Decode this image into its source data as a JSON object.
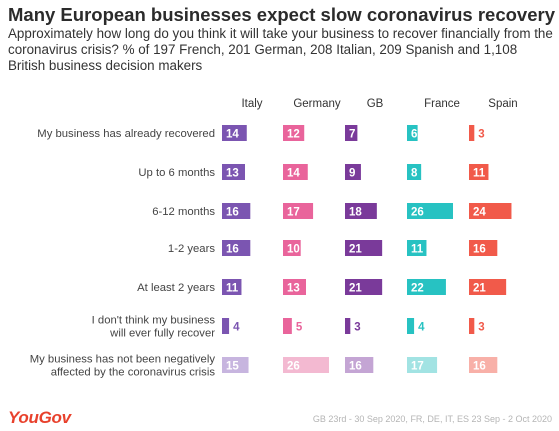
{
  "header": {
    "title": "Many European businesses expect slow coronavirus recovery",
    "subtitle": "Approximately how long do you think it will take your business to recover financially from the coronavirus crisis? % of 197 French, 201 German, 208 Italian, 209 Spanish and 1,108 British business decision makers"
  },
  "footer": {
    "logo": "YouGov",
    "note": "GB 23rd - 30 Sep 2020, FR, DE, IT, ES 23 Sep - 2 Oct 2020"
  },
  "chart_data": {
    "type": "bar",
    "categories": [
      "My business has already recovered",
      "Up to 6 months",
      "6-12 months",
      "1-2 years",
      "At least 2 years",
      "I don't think my business\nwill ever fully recover",
      "My business has not been negatively\naffected by the coronavirus crisis"
    ],
    "series": [
      {
        "name": "Italy",
        "color": "#7b55b1",
        "light": "#c7b5df",
        "values": [
          14,
          13,
          16,
          16,
          11,
          4,
          15
        ]
      },
      {
        "name": "Germany",
        "color": "#e9649b",
        "light": "#f3b9d1",
        "values": [
          12,
          14,
          17,
          10,
          13,
          5,
          26
        ]
      },
      {
        "name": "GB",
        "color": "#7a3a9a",
        "light": "#c4a5d4",
        "values": [
          7,
          9,
          18,
          21,
          21,
          3,
          16
        ]
      },
      {
        "name": "France",
        "color": "#27c2c2",
        "light": "#a2e3e3",
        "values": [
          6,
          8,
          26,
          11,
          22,
          4,
          17
        ]
      },
      {
        "name": "Spain",
        "color": "#f15a4a",
        "light": "#f8b0a8",
        "values": [
          3,
          11,
          24,
          16,
          21,
          3,
          16
        ]
      }
    ],
    "highlight_last_row_lighter": true,
    "xlim": [
      0,
      26
    ]
  }
}
